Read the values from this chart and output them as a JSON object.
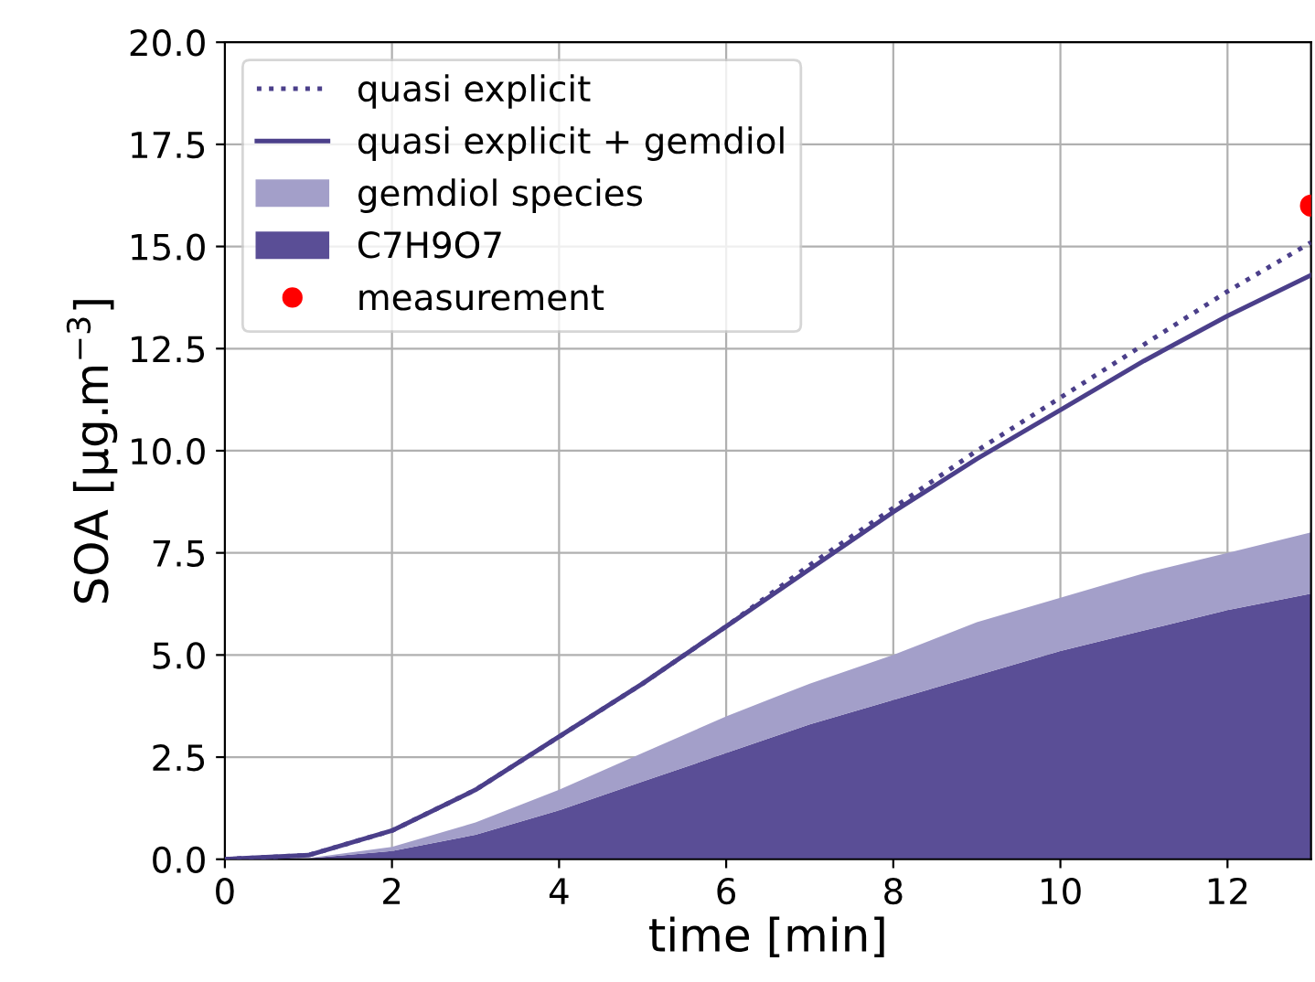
{
  "chart_data": {
    "type": "line",
    "xlabel": "time [min]",
    "ylabel": "SOA [μg.m$^{−3}$]",
    "x": [
      0,
      1,
      2,
      3,
      4,
      5,
      6,
      7,
      8,
      9,
      10,
      11,
      12,
      13
    ],
    "series": [
      {
        "name": "quasi explicit",
        "line_style": "dotted",
        "color": "#4b3f8a",
        "values": [
          0,
          0.1,
          0.7,
          1.7,
          3.0,
          4.3,
          5.7,
          7.2,
          8.6,
          10.0,
          11.3,
          12.6,
          13.9,
          15.1
        ]
      },
      {
        "name": "quasi explicit + gemdiol",
        "line_style": "solid",
        "color": "#4b3f8a",
        "values": [
          0,
          0.1,
          0.7,
          1.7,
          3.0,
          4.3,
          5.7,
          7.1,
          8.5,
          9.8,
          11.0,
          12.2,
          13.3,
          14.3
        ]
      },
      {
        "name": "C7H9O7",
        "type": "area",
        "color": "#5a4e96",
        "values": [
          0,
          0.02,
          0.2,
          0.6,
          1.2,
          1.9,
          2.6,
          3.3,
          3.9,
          4.5,
          5.1,
          5.6,
          6.1,
          6.5
        ]
      },
      {
        "name": "gemdiol species",
        "type": "area",
        "color": "#a39fc9",
        "values": [
          0,
          0.01,
          0.1,
          0.3,
          0.5,
          0.7,
          0.9,
          1.0,
          1.1,
          1.3,
          1.3,
          1.4,
          1.4,
          1.5
        ]
      },
      {
        "name": "measurement",
        "type": "scatter",
        "marker": "circle",
        "color": "#ff0000",
        "x": [
          13
        ],
        "values": [
          16.0
        ]
      }
    ],
    "stacked": true,
    "xlim": [
      0,
      13
    ],
    "xticks": [
      0,
      2,
      4,
      6,
      8,
      10,
      12
    ],
    "ylim": [
      0,
      20
    ],
    "yticks": [
      {
        "value": 0,
        "label": "0.0"
      },
      {
        "value": 2.5,
        "label": "2.5"
      },
      {
        "value": 5,
        "label": "5.0"
      },
      {
        "value": 7.5,
        "label": "7.5"
      },
      {
        "value": 10,
        "label": "10.0"
      },
      {
        "value": 12.5,
        "label": "12.5"
      },
      {
        "value": 15,
        "label": "15.0"
      },
      {
        "value": 17.5,
        "label": "17.5"
      },
      {
        "value": 20,
        "label": "20.0"
      }
    ],
    "grid": true,
    "legend": "top left"
  }
}
